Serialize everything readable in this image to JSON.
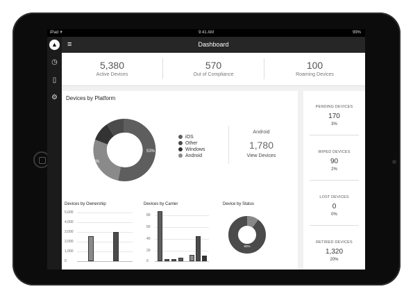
{
  "status_bar": {
    "carrier": "iPad ✈︎",
    "time": "9:41 AM",
    "battery": "99%"
  },
  "header": {
    "title": "Dashboard",
    "menu_icon": "hamburger-icon"
  },
  "sidebar": {
    "icons": [
      "clock-icon",
      "mobile-icon",
      "gear-icon"
    ],
    "logo": "logo-icon"
  },
  "summary": [
    {
      "value": "5,380",
      "label": "Active Devices"
    },
    {
      "value": "570",
      "label": "Out of Compliance"
    },
    {
      "value": "100",
      "label": "Roaming Devices"
    }
  ],
  "platform": {
    "title": "Devices by Platform",
    "legend": [
      "iOS",
      "Other",
      "Windows",
      "Android"
    ],
    "colors": [
      "#5e5e5e",
      "#4b4b4b",
      "#333333",
      "#8a8a8a"
    ],
    "slice_labels": [
      "53%",
      "33%"
    ],
    "android": {
      "title": "Android",
      "value": "1,780",
      "link": "View Devices"
    }
  },
  "ownership": {
    "title": "Devices by Ownership",
    "yticks": [
      "5,000",
      "4,000",
      "3,000",
      "2,000",
      "1,000",
      "0"
    ]
  },
  "carrier": {
    "title": "Devices by Carrier",
    "yticks": [
      "80",
      "60",
      "40",
      "20",
      "0"
    ]
  },
  "status": {
    "title": "Device by Status",
    "slice_label": "90%"
  },
  "right_stats": [
    {
      "title": "PENDING DEVICES",
      "value": "170",
      "percent": "3%"
    },
    {
      "title": "WIPED DEVICES",
      "value": "90",
      "percent": "2%"
    },
    {
      "title": "LOST DEVICES",
      "value": "0",
      "percent": "0%"
    },
    {
      "title": "RETIRED DEVICES",
      "value": "1,320",
      "percent": "20%"
    }
  ]
}
